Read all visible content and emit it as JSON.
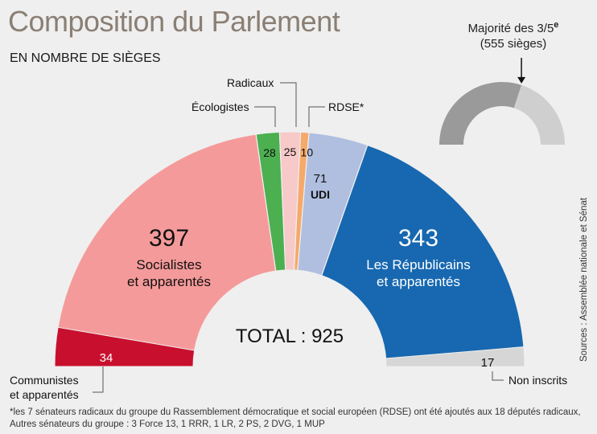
{
  "title": "Composition du Parlement",
  "subtitle": "EN NOMBRE DE SIÈGES",
  "total_label": "TOTAL : 925",
  "majority": {
    "line1": "Majorité des 3/5",
    "sup": "e",
    "line2": "(555 sièges)",
    "seats": 555,
    "total": 925
  },
  "source": "Sources : Assemblée nationale et Sénat",
  "footnote": {
    "line1": "*les 7 sénateurs radicaux du groupe du Rassemblement démocratique et social européen (RDSE) ont été ajoutés aux 18 députés radicaux,",
    "line2": "Autres sénateurs du groupe : 3 Force 13, 1 RRR, 1 LR, 2 PS, 2 DVG, 1 MUP"
  },
  "chart_data": {
    "type": "pie",
    "shape": "half-donut (hemicycle)",
    "total": 925,
    "groups": [
      {
        "name": "Communistes et apparentés",
        "value": 34,
        "color": "#c8102e",
        "value_label": "34",
        "ring": "inner-band"
      },
      {
        "name": "Socialistes et apparentés",
        "value": 397,
        "color": "#f59a9a",
        "value_label": "397",
        "label_lines": [
          "Socialistes",
          "et apparentés"
        ]
      },
      {
        "name": "Écologistes",
        "value": 28,
        "color": "#4caf50",
        "value_label": "28"
      },
      {
        "name": "Radicaux",
        "value": 25,
        "color": "#f7c9c9",
        "value_label": "25"
      },
      {
        "name": "RDSE*",
        "value": 10,
        "color": "#f6a96a",
        "value_label": "10"
      },
      {
        "name": "UDI",
        "value": 71,
        "color": "#b0bfe0",
        "value_label": "71",
        "label_lines": [
          "UDI"
        ]
      },
      {
        "name": "Les Républicains et apparentés",
        "value": 343,
        "color": "#1768b0",
        "value_label": "343",
        "label_lines": [
          "Les Républicains",
          "et apparentés"
        ]
      },
      {
        "name": "Non inscrits",
        "value": 17,
        "color": "#d6d6d6",
        "value_label": "17",
        "ring": "inner-band"
      }
    ],
    "callouts": {
      "communistes": [
        "Communistes",
        "et apparentés"
      ],
      "ecologistes": "Écologistes",
      "radicaux": "Radicaux",
      "rdse": "RDSE*",
      "non_inscrits": "Non inscrits"
    },
    "majority_gauge": {
      "seats": 555,
      "total": 925,
      "colors": [
        "#9a9a9a",
        "#cfcfcf"
      ]
    }
  }
}
